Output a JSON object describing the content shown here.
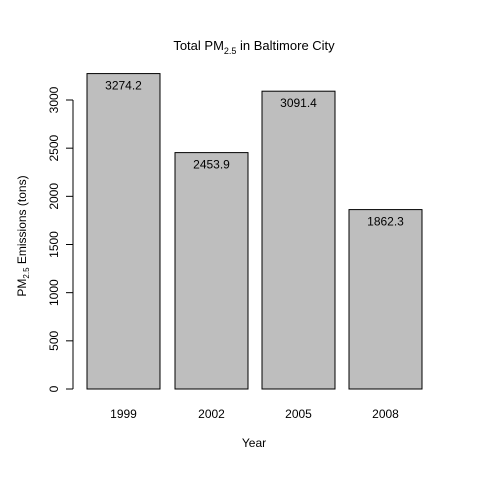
{
  "chart_data": {
    "type": "bar",
    "title_main": "Total PM",
    "title_sub": "2.5",
    "title_rest": " in Baltimore City",
    "ylabel_main": "PM",
    "ylabel_sub": "2.5",
    "ylabel_rest": " Emissions (tons)",
    "xlabel": "Year",
    "categories": [
      "1999",
      "2002",
      "2005",
      "2008"
    ],
    "values": [
      3274.2,
      2453.9,
      3091.4,
      1862.3
    ],
    "value_labels": [
      "3274.2",
      "2453.9",
      "3091.4",
      "1862.3"
    ],
    "yticks": [
      0,
      500,
      1000,
      1500,
      2000,
      2500,
      3000
    ],
    "ylim": [
      0,
      3300
    ],
    "bar_color": "#bebebe",
    "bar_border_color": "#000000",
    "grid": false,
    "legend": "none"
  }
}
